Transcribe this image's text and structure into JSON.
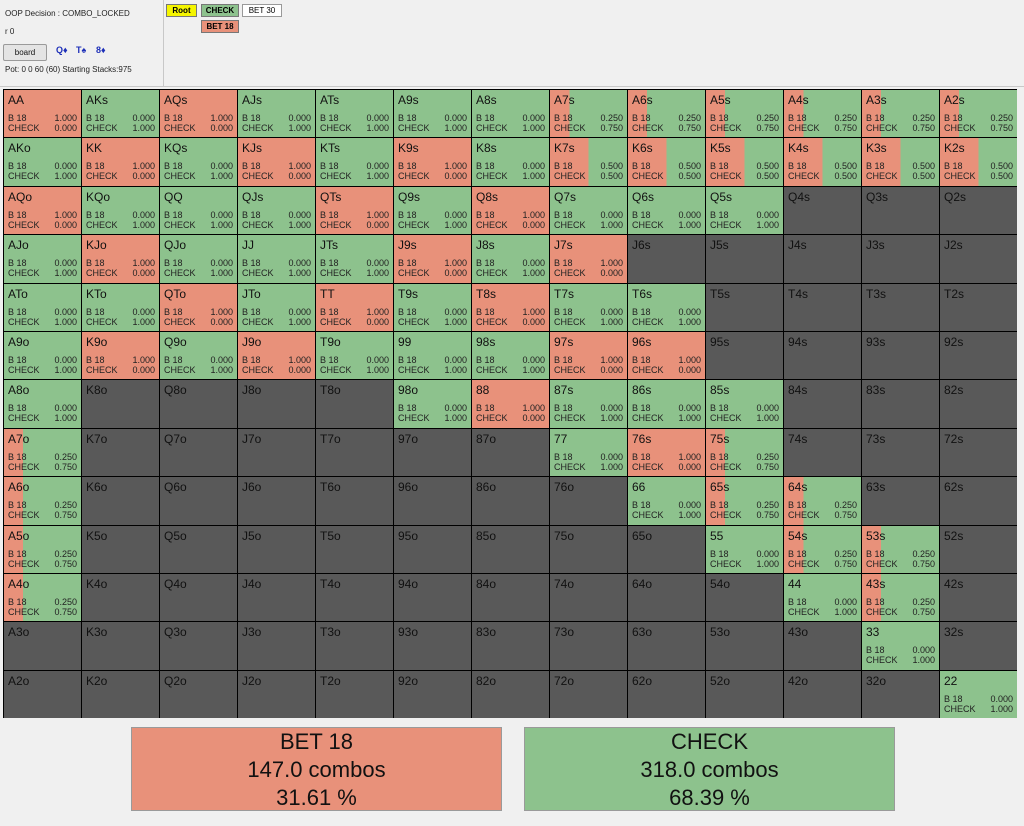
{
  "header": {
    "decision": "OOP Decision : COMBO_LOCKED",
    "r_label": "r 0",
    "board_button": "board",
    "board_cards": [
      {
        "rank": "Q",
        "suit": "♦",
        "suit_icon": "diamond-icon"
      },
      {
        "rank": "T",
        "suit": "♠",
        "suit_icon": "spade-icon"
      },
      {
        "rank": "8",
        "suit": "♦",
        "suit_icon": "diamond-icon"
      }
    ],
    "pot": "Pot: 0 0 60 (60) Starting Stacks:975"
  },
  "tree": {
    "root": "Root",
    "check": "CHECK",
    "bet30": "BET 30",
    "bet18": "BET 18"
  },
  "colors": {
    "bet": "#e8917a",
    "check": "#8dc28d",
    "none": "#595959",
    "root": "#f5f500",
    "card_suit": "#1d2fb8"
  },
  "action_labels": {
    "bet": "B 18",
    "check": "CHECK"
  },
  "grid": [
    [
      {
        "h": "AA",
        "b": "1.000",
        "c": "0.000"
      },
      {
        "h": "AKs",
        "b": "0.000",
        "c": "1.000"
      },
      {
        "h": "AQs",
        "b": "1.000",
        "c": "0.000"
      },
      {
        "h": "AJs",
        "b": "0.000",
        "c": "1.000"
      },
      {
        "h": "ATs",
        "b": "0.000",
        "c": "1.000"
      },
      {
        "h": "A9s",
        "b": "0.000",
        "c": "1.000"
      },
      {
        "h": "A8s",
        "b": "0.000",
        "c": "1.000"
      },
      {
        "h": "A7s",
        "b": "0.250",
        "c": "0.750"
      },
      {
        "h": "A6s",
        "b": "0.250",
        "c": "0.750"
      },
      {
        "h": "A5s",
        "b": "0.250",
        "c": "0.750"
      },
      {
        "h": "A4s",
        "b": "0.250",
        "c": "0.750"
      },
      {
        "h": "A3s",
        "b": "0.250",
        "c": "0.750"
      },
      {
        "h": "A2s",
        "b": "0.250",
        "c": "0.750"
      }
    ],
    [
      {
        "h": "AKo",
        "b": "0.000",
        "c": "1.000"
      },
      {
        "h": "KK",
        "b": "1.000",
        "c": "0.000"
      },
      {
        "h": "KQs",
        "b": "0.000",
        "c": "1.000"
      },
      {
        "h": "KJs",
        "b": "1.000",
        "c": "0.000"
      },
      {
        "h": "KTs",
        "b": "0.000",
        "c": "1.000"
      },
      {
        "h": "K9s",
        "b": "1.000",
        "c": "0.000"
      },
      {
        "h": "K8s",
        "b": "0.000",
        "c": "1.000"
      },
      {
        "h": "K7s",
        "b": "0.500",
        "c": "0.500"
      },
      {
        "h": "K6s",
        "b": "0.500",
        "c": "0.500"
      },
      {
        "h": "K5s",
        "b": "0.500",
        "c": "0.500"
      },
      {
        "h": "K4s",
        "b": "0.500",
        "c": "0.500"
      },
      {
        "h": "K3s",
        "b": "0.500",
        "c": "0.500"
      },
      {
        "h": "K2s",
        "b": "0.500",
        "c": "0.500"
      }
    ],
    [
      {
        "h": "AQo",
        "b": "1.000",
        "c": "0.000"
      },
      {
        "h": "KQo",
        "b": "0.000",
        "c": "1.000"
      },
      {
        "h": "QQ",
        "b": "0.000",
        "c": "1.000"
      },
      {
        "h": "QJs",
        "b": "0.000",
        "c": "1.000"
      },
      {
        "h": "QTs",
        "b": "1.000",
        "c": "0.000"
      },
      {
        "h": "Q9s",
        "b": "0.000",
        "c": "1.000"
      },
      {
        "h": "Q8s",
        "b": "1.000",
        "c": "0.000"
      },
      {
        "h": "Q7s",
        "b": "0.000",
        "c": "1.000"
      },
      {
        "h": "Q6s",
        "b": "0.000",
        "c": "1.000"
      },
      {
        "h": "Q5s",
        "b": "0.000",
        "c": "1.000"
      },
      {
        "h": "Q4s"
      },
      {
        "h": "Q3s"
      },
      {
        "h": "Q2s"
      }
    ],
    [
      {
        "h": "AJo",
        "b": "0.000",
        "c": "1.000"
      },
      {
        "h": "KJo",
        "b": "1.000",
        "c": "0.000"
      },
      {
        "h": "QJo",
        "b": "0.000",
        "c": "1.000"
      },
      {
        "h": "JJ",
        "b": "0.000",
        "c": "1.000"
      },
      {
        "h": "JTs",
        "b": "0.000",
        "c": "1.000"
      },
      {
        "h": "J9s",
        "b": "1.000",
        "c": "0.000"
      },
      {
        "h": "J8s",
        "b": "0.000",
        "c": "1.000"
      },
      {
        "h": "J7s",
        "b": "1.000",
        "c": "0.000"
      },
      {
        "h": "J6s"
      },
      {
        "h": "J5s"
      },
      {
        "h": "J4s"
      },
      {
        "h": "J3s"
      },
      {
        "h": "J2s"
      }
    ],
    [
      {
        "h": "ATo",
        "b": "0.000",
        "c": "1.000"
      },
      {
        "h": "KTo",
        "b": "0.000",
        "c": "1.000"
      },
      {
        "h": "QTo",
        "b": "1.000",
        "c": "0.000"
      },
      {
        "h": "JTo",
        "b": "0.000",
        "c": "1.000"
      },
      {
        "h": "TT",
        "b": "1.000",
        "c": "0.000"
      },
      {
        "h": "T9s",
        "b": "0.000",
        "c": "1.000"
      },
      {
        "h": "T8s",
        "b": "1.000",
        "c": "0.000"
      },
      {
        "h": "T7s",
        "b": "0.000",
        "c": "1.000"
      },
      {
        "h": "T6s",
        "b": "0.000",
        "c": "1.000"
      },
      {
        "h": "T5s"
      },
      {
        "h": "T4s"
      },
      {
        "h": "T3s"
      },
      {
        "h": "T2s"
      }
    ],
    [
      {
        "h": "A9o",
        "b": "0.000",
        "c": "1.000"
      },
      {
        "h": "K9o",
        "b": "1.000",
        "c": "0.000"
      },
      {
        "h": "Q9o",
        "b": "0.000",
        "c": "1.000"
      },
      {
        "h": "J9o",
        "b": "1.000",
        "c": "0.000"
      },
      {
        "h": "T9o",
        "b": "0.000",
        "c": "1.000"
      },
      {
        "h": "99",
        "b": "0.000",
        "c": "1.000"
      },
      {
        "h": "98s",
        "b": "0.000",
        "c": "1.000"
      },
      {
        "h": "97s",
        "b": "1.000",
        "c": "0.000"
      },
      {
        "h": "96s",
        "b": "1.000",
        "c": "0.000"
      },
      {
        "h": "95s"
      },
      {
        "h": "94s"
      },
      {
        "h": "93s"
      },
      {
        "h": "92s"
      }
    ],
    [
      {
        "h": "A8o",
        "b": "0.000",
        "c": "1.000"
      },
      {
        "h": "K8o"
      },
      {
        "h": "Q8o"
      },
      {
        "h": "J8o"
      },
      {
        "h": "T8o"
      },
      {
        "h": "98o",
        "b": "0.000",
        "c": "1.000"
      },
      {
        "h": "88",
        "b": "1.000",
        "c": "0.000"
      },
      {
        "h": "87s",
        "b": "0.000",
        "c": "1.000"
      },
      {
        "h": "86s",
        "b": "0.000",
        "c": "1.000"
      },
      {
        "h": "85s",
        "b": "0.000",
        "c": "1.000"
      },
      {
        "h": "84s"
      },
      {
        "h": "83s"
      },
      {
        "h": "82s"
      }
    ],
    [
      {
        "h": "A7o",
        "b": "0.250",
        "c": "0.750"
      },
      {
        "h": "K7o"
      },
      {
        "h": "Q7o"
      },
      {
        "h": "J7o"
      },
      {
        "h": "T7o"
      },
      {
        "h": "97o"
      },
      {
        "h": "87o"
      },
      {
        "h": "77",
        "b": "0.000",
        "c": "1.000"
      },
      {
        "h": "76s",
        "b": "1.000",
        "c": "0.000"
      },
      {
        "h": "75s",
        "b": "0.250",
        "c": "0.750"
      },
      {
        "h": "74s"
      },
      {
        "h": "73s"
      },
      {
        "h": "72s"
      }
    ],
    [
      {
        "h": "A6o",
        "b": "0.250",
        "c": "0.750"
      },
      {
        "h": "K6o"
      },
      {
        "h": "Q6o"
      },
      {
        "h": "J6o"
      },
      {
        "h": "T6o"
      },
      {
        "h": "96o"
      },
      {
        "h": "86o"
      },
      {
        "h": "76o"
      },
      {
        "h": "66",
        "b": "0.000",
        "c": "1.000"
      },
      {
        "h": "65s",
        "b": "0.250",
        "c": "0.750"
      },
      {
        "h": "64s",
        "b": "0.250",
        "c": "0.750"
      },
      {
        "h": "63s"
      },
      {
        "h": "62s"
      }
    ],
    [
      {
        "h": "A5o",
        "b": "0.250",
        "c": "0.750"
      },
      {
        "h": "K5o"
      },
      {
        "h": "Q5o"
      },
      {
        "h": "J5o"
      },
      {
        "h": "T5o"
      },
      {
        "h": "95o"
      },
      {
        "h": "85o"
      },
      {
        "h": "75o"
      },
      {
        "h": "65o"
      },
      {
        "h": "55",
        "b": "0.000",
        "c": "1.000"
      },
      {
        "h": "54s",
        "b": "0.250",
        "c": "0.750"
      },
      {
        "h": "53s",
        "b": "0.250",
        "c": "0.750"
      },
      {
        "h": "52s"
      }
    ],
    [
      {
        "h": "A4o",
        "b": "0.250",
        "c": "0.750"
      },
      {
        "h": "K4o"
      },
      {
        "h": "Q4o"
      },
      {
        "h": "J4o"
      },
      {
        "h": "T4o"
      },
      {
        "h": "94o"
      },
      {
        "h": "84o"
      },
      {
        "h": "74o"
      },
      {
        "h": "64o"
      },
      {
        "h": "54o"
      },
      {
        "h": "44",
        "b": "0.000",
        "c": "1.000"
      },
      {
        "h": "43s",
        "b": "0.250",
        "c": "0.750"
      },
      {
        "h": "42s"
      }
    ],
    [
      {
        "h": "A3o"
      },
      {
        "h": "K3o"
      },
      {
        "h": "Q3o"
      },
      {
        "h": "J3o"
      },
      {
        "h": "T3o"
      },
      {
        "h": "93o"
      },
      {
        "h": "83o"
      },
      {
        "h": "73o"
      },
      {
        "h": "63o"
      },
      {
        "h": "53o"
      },
      {
        "h": "43o"
      },
      {
        "h": "33",
        "b": "0.000",
        "c": "1.000"
      },
      {
        "h": "32s"
      }
    ],
    [
      {
        "h": "A2o"
      },
      {
        "h": "K2o"
      },
      {
        "h": "Q2o"
      },
      {
        "h": "J2o"
      },
      {
        "h": "T2o"
      },
      {
        "h": "92o"
      },
      {
        "h": "82o"
      },
      {
        "h": "72o"
      },
      {
        "h": "62o"
      },
      {
        "h": "52o"
      },
      {
        "h": "42o"
      },
      {
        "h": "32o"
      },
      {
        "h": "22",
        "b": "0.000",
        "c": "1.000"
      }
    ]
  ],
  "summary": {
    "bet": {
      "label": "BET 18",
      "combos": "147.0 combos",
      "pct": "31.61 %"
    },
    "check": {
      "label": "CHECK",
      "combos": "318.0 combos",
      "pct": "68.39 %"
    }
  }
}
